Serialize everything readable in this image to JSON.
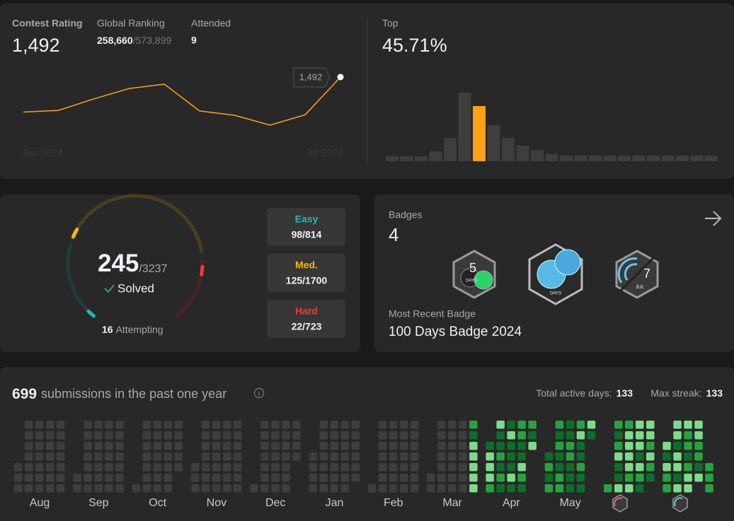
{
  "contest": {
    "rating_label": "Contest Rating",
    "rating": "1,492",
    "ranking_label": "Global Ranking",
    "ranking": "258,660",
    "ranking_total": "/573,899",
    "attended_label": "Attended",
    "attended": "9"
  },
  "problems": {
    "solved": "245",
    "total": "/3237",
    "solved_label": "Solved",
    "attempting": "16",
    "attempting_label": "Attempting",
    "difficulties": [
      {
        "name": "Easy",
        "count": "98/814",
        "color": "#1cbaba"
      },
      {
        "name": "Med.",
        "count": "125/1700",
        "color": "#ffb700"
      },
      {
        "name": "Hard",
        "count": "22/723",
        "color": "#f63737"
      }
    ]
  },
  "badges": {
    "label": "Badges",
    "count": "4",
    "recent_label": "Most Recent Badge",
    "recent": "100 Days Badge 2024",
    "icon_texts": [
      "DAYS",
      "DAYS",
      "7",
      "JUL"
    ]
  },
  "submissions": {
    "count": "699",
    "label": "submissions in the past one year",
    "active_label": "Total active days:",
    "active": "133",
    "streak_label": "Max streak:",
    "streak": "133"
  },
  "chart_data": [
    {
      "type": "line",
      "categories": [
        "Jun 2024",
        null,
        null,
        null,
        null,
        null,
        null,
        null,
        null,
        "Jul 2024"
      ],
      "values": [
        1428,
        1431,
        1452,
        1471,
        1479,
        1430,
        1422,
        1404,
        1423,
        1492
      ],
      "value_labels": [
        null,
        null,
        null,
        null,
        null,
        null,
        null,
        null,
        null,
        "1,492"
      ],
      "color": "#ffa116"
    },
    {
      "type": "bar",
      "title": "Top",
      "subtitle": "45.71%",
      "values": [
        7,
        7,
        7,
        14,
        33,
        97,
        78,
        51,
        33,
        22,
        16,
        10,
        8,
        8,
        8,
        8,
        8,
        8,
        8,
        8,
        8,
        8,
        8
      ],
      "color": "#3e3e3e",
      "highlight": 6,
      "highlight_color": "#ffa116"
    },
    {
      "type": "heatmap",
      "level_colors": [
        "#3e3e3e",
        "#0d6e2a",
        "#26a33e",
        "#7edb89"
      ],
      "months": [
        {
          "label": "Aug",
          "weeks": [
            [
              null,
              null,
              null,
              null,
              0,
              0,
              0
            ],
            [
              0,
              0,
              0,
              0,
              0,
              0,
              0
            ],
            [
              0,
              0,
              0,
              0,
              0,
              0,
              0
            ],
            [
              0,
              0,
              0,
              0,
              0,
              0,
              0
            ],
            [
              0,
              0,
              0,
              0,
              0,
              0,
              0
            ]
          ]
        },
        {
          "label": "Sep",
          "weeks": [
            [
              null,
              null,
              null,
              null,
              null,
              0,
              0
            ],
            [
              0,
              0,
              0,
              0,
              0,
              0,
              0
            ],
            [
              0,
              0,
              0,
              0,
              0,
              0,
              0
            ],
            [
              0,
              0,
              0,
              0,
              0,
              0,
              0
            ],
            [
              0,
              0,
              0,
              0,
              0,
              0,
              0
            ]
          ]
        },
        {
          "label": "Oct",
          "weeks": [
            [
              null,
              null,
              null,
              null,
              null,
              null,
              0
            ],
            [
              0,
              0,
              0,
              0,
              0,
              0,
              0
            ],
            [
              0,
              0,
              0,
              0,
              0,
              0,
              0
            ],
            [
              0,
              0,
              0,
              0,
              0,
              0,
              0
            ],
            [
              0,
              0,
              0,
              0,
              0,
              null,
              null
            ]
          ]
        },
        {
          "label": "Nov",
          "weeks": [
            [
              null,
              null,
              null,
              null,
              0,
              0,
              0
            ],
            [
              0,
              0,
              0,
              0,
              0,
              0,
              0
            ],
            [
              0,
              0,
              0,
              0,
              0,
              0,
              0
            ],
            [
              0,
              0,
              0,
              0,
              0,
              0,
              0
            ],
            [
              0,
              0,
              0,
              0,
              0,
              0,
              0
            ]
          ]
        },
        {
          "label": "Dec",
          "weeks": [
            [
              null,
              null,
              null,
              null,
              null,
              null,
              0
            ],
            [
              0,
              0,
              0,
              0,
              0,
              0,
              0
            ],
            [
              0,
              0,
              0,
              0,
              0,
              0,
              0
            ],
            [
              0,
              0,
              0,
              0,
              0,
              0,
              0
            ],
            [
              0,
              0,
              0,
              0,
              null,
              null,
              null
            ]
          ]
        },
        {
          "label": "Jan",
          "weeks": [
            [
              null,
              null,
              null,
              0,
              0,
              0,
              0
            ],
            [
              0,
              0,
              0,
              0,
              0,
              0,
              0
            ],
            [
              0,
              0,
              0,
              0,
              0,
              0,
              0
            ],
            [
              0,
              0,
              0,
              0,
              0,
              0,
              0
            ],
            [
              0,
              0,
              0,
              0,
              0,
              0,
              null
            ]
          ]
        },
        {
          "label": "Feb",
          "weeks": [
            [
              null,
              null,
              null,
              null,
              null,
              null,
              0
            ],
            [
              0,
              0,
              0,
              0,
              0,
              0,
              0
            ],
            [
              0,
              0,
              0,
              0,
              0,
              0,
              0
            ],
            [
              0,
              0,
              0,
              0,
              0,
              0,
              0
            ],
            [
              0,
              0,
              0,
              0,
              0,
              0,
              0
            ]
          ]
        },
        {
          "label": "Mar",
          "weeks": [
            [
              null,
              null,
              null,
              null,
              null,
              0,
              0
            ],
            [
              0,
              0,
              0,
              0,
              0,
              0,
              0
            ],
            [
              0,
              0,
              0,
              0,
              0,
              0,
              0
            ],
            [
              0,
              0,
              0,
              0,
              0,
              0,
              0
            ],
            [
              2,
              1,
              3,
              3,
              3,
              3,
              3
            ]
          ]
        },
        {
          "label": "Apr",
          "weeks": [
            [
              null,
              null,
              1,
              3,
              3,
              3,
              2
            ],
            [
              3,
              1,
              1,
              2,
              1,
              2,
              1
            ],
            [
              1,
              3,
              1,
              1,
              1,
              3,
              1
            ],
            [
              2,
              2,
              1,
              1,
              3,
              2,
              1
            ],
            [
              2,
              1,
              3,
              null,
              null,
              null,
              null
            ]
          ]
        },
        {
          "label": "May",
          "weeks": [
            [
              null,
              null,
              null,
              1,
              2,
              1,
              2
            ],
            [
              2,
              1,
              2,
              1,
              1,
              2,
              2
            ],
            [
              1,
              1,
              2,
              2,
              1,
              1,
              1
            ],
            [
              2,
              3,
              1,
              1,
              2,
              1,
              1
            ],
            [
              3,
              1,
              null,
              null,
              null,
              null,
              null
            ]
          ]
        },
        {
          "label": null,
          "weeks": [
            [
              null,
              null,
              null,
              null,
              null,
              null,
              2
            ],
            [
              2,
              1,
              2,
              3,
              1,
              1,
              3
            ],
            [
              2,
              3,
              3,
              3,
              3,
              2,
              3
            ],
            [
              3,
              3,
              3,
              1,
              3,
              2,
              1
            ],
            [
              3,
              3,
              2,
              3,
              2,
              1,
              null
            ]
          ]
        },
        {
          "label": null,
          "weeks": [
            [
              null,
              null,
              3,
              1,
              3,
              2,
              2
            ],
            [
              3,
              3,
              1,
              3,
              3,
              1,
              3
            ],
            [
              3,
              2,
              2,
              1,
              2,
              3,
              3
            ],
            [
              3,
              3,
              2,
              2,
              1,
              3,
              null
            ],
            [
              null,
              null,
              null,
              null,
              2,
              2,
              2
            ]
          ]
        }
      ]
    }
  ]
}
